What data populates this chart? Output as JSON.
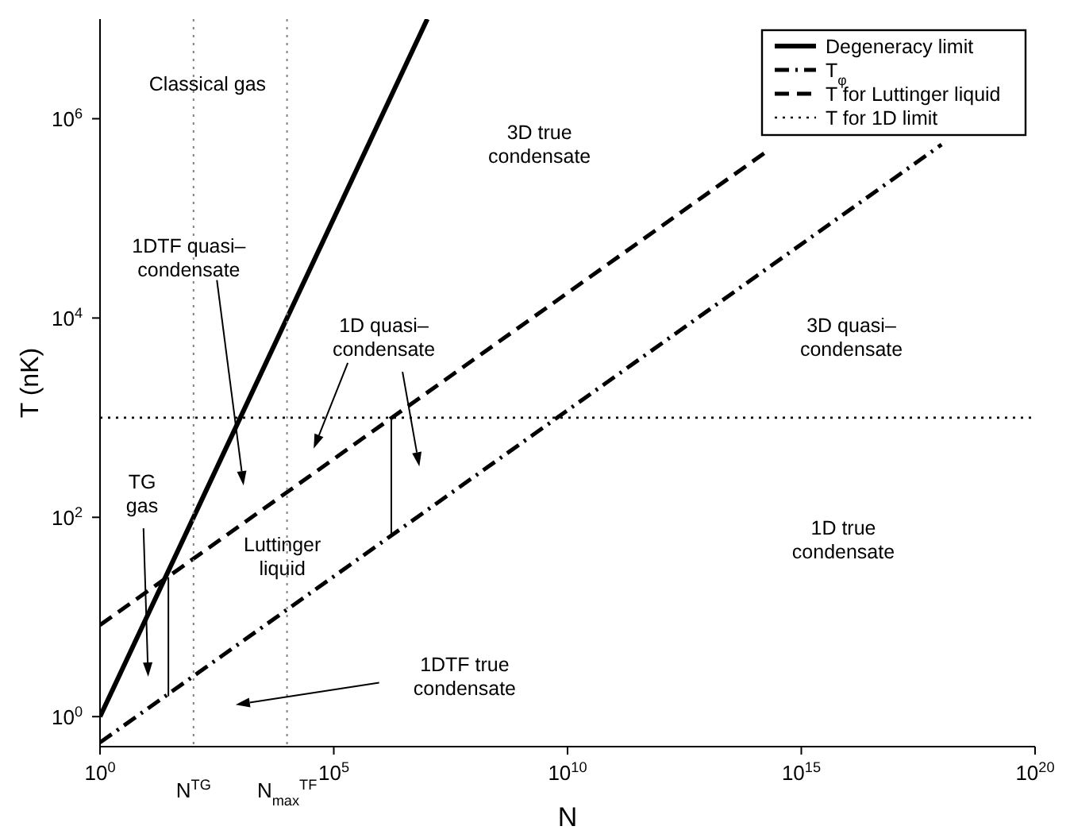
{
  "chart_data": {
    "type": "line",
    "xlabel": "N",
    "ylabel": "T (nK)",
    "log": "xy",
    "xlim": [
      1,
      1e+20
    ],
    "ylim": [
      0.5,
      10000000.0
    ],
    "xticks": [
      {
        "value": 1,
        "label": "10$^{0}$"
      },
      {
        "value": 100000.0,
        "label": "10$^{5}$"
      },
      {
        "value": 10000000000.0,
        "label": "10$^{10}$"
      },
      {
        "value": 1000000000000000.0,
        "label": "10$^{15}$"
      },
      {
        "value": 1e+20,
        "label": "10$^{20}$"
      }
    ],
    "yticks": [
      {
        "value": 1,
        "label": "10$^{0}$"
      },
      {
        "value": 100,
        "label": "10$^{2}$"
      },
      {
        "value": 10000,
        "label": "10$^{4}$"
      },
      {
        "value": 1000000,
        "label": "10$^{6}$"
      }
    ],
    "grid": false,
    "legend": "top right",
    "marker": "none",
    "series": [
      {
        "name": "Degeneracy limit",
        "color": "#000000",
        "line_style": "solid",
        "x": [
          1,
          10000000.0
        ],
        "values": [
          1,
          10000000.0
        ]
      },
      {
        "name": "T$_{φ}$",
        "color": "#000000",
        "line_style": "dashdot",
        "x": [
          1,
          1e+18
        ],
        "values": [
          0.55,
          550000
        ]
      },
      {
        "name": "T for Luttinger liquid",
        "color": "#000000",
        "line_style": "dashed",
        "x": [
          1,
          160000000000000.0
        ],
        "values": [
          8.3,
          450000
        ]
      },
      {
        "name": "T for 1D limit",
        "color": "#000000",
        "line_style": "dotted",
        "x": [
          1,
          1e+20
        ],
        "values": [
          1000,
          1000
        ]
      },
      {
        "color": "#000000",
        "line_style": "solid",
        "x": [
          29,
          29
        ],
        "values": [
          25,
          1.6
        ]
      },
      {
        "color": "#000000",
        "line_style": "solid",
        "x": [
          1700000,
          1700000
        ],
        "values": [
          1000,
          66
        ]
      }
    ],
    "ref_lines": [
      {
        "axis": "x",
        "value": 100,
        "label": "N$^{TG}$",
        "color": "#808080",
        "line_style": "dotted"
      },
      {
        "axis": "x",
        "value": 10000,
        "label": "N$_{max}$$^{TF}$",
        "color": "#808080",
        "line_style": "dotted"
      }
    ],
    "annotations": [
      "Classical gas",
      "3D true\ncondensate",
      "1DTF quasi–\ncondensate",
      "1D quasi–\ncondensate",
      "3D quasi–\ncondensate",
      "TG\ngas",
      "Luttinger\nliquid",
      "1D true\ncondensate",
      "1DTF true\ncondensate"
    ]
  }
}
